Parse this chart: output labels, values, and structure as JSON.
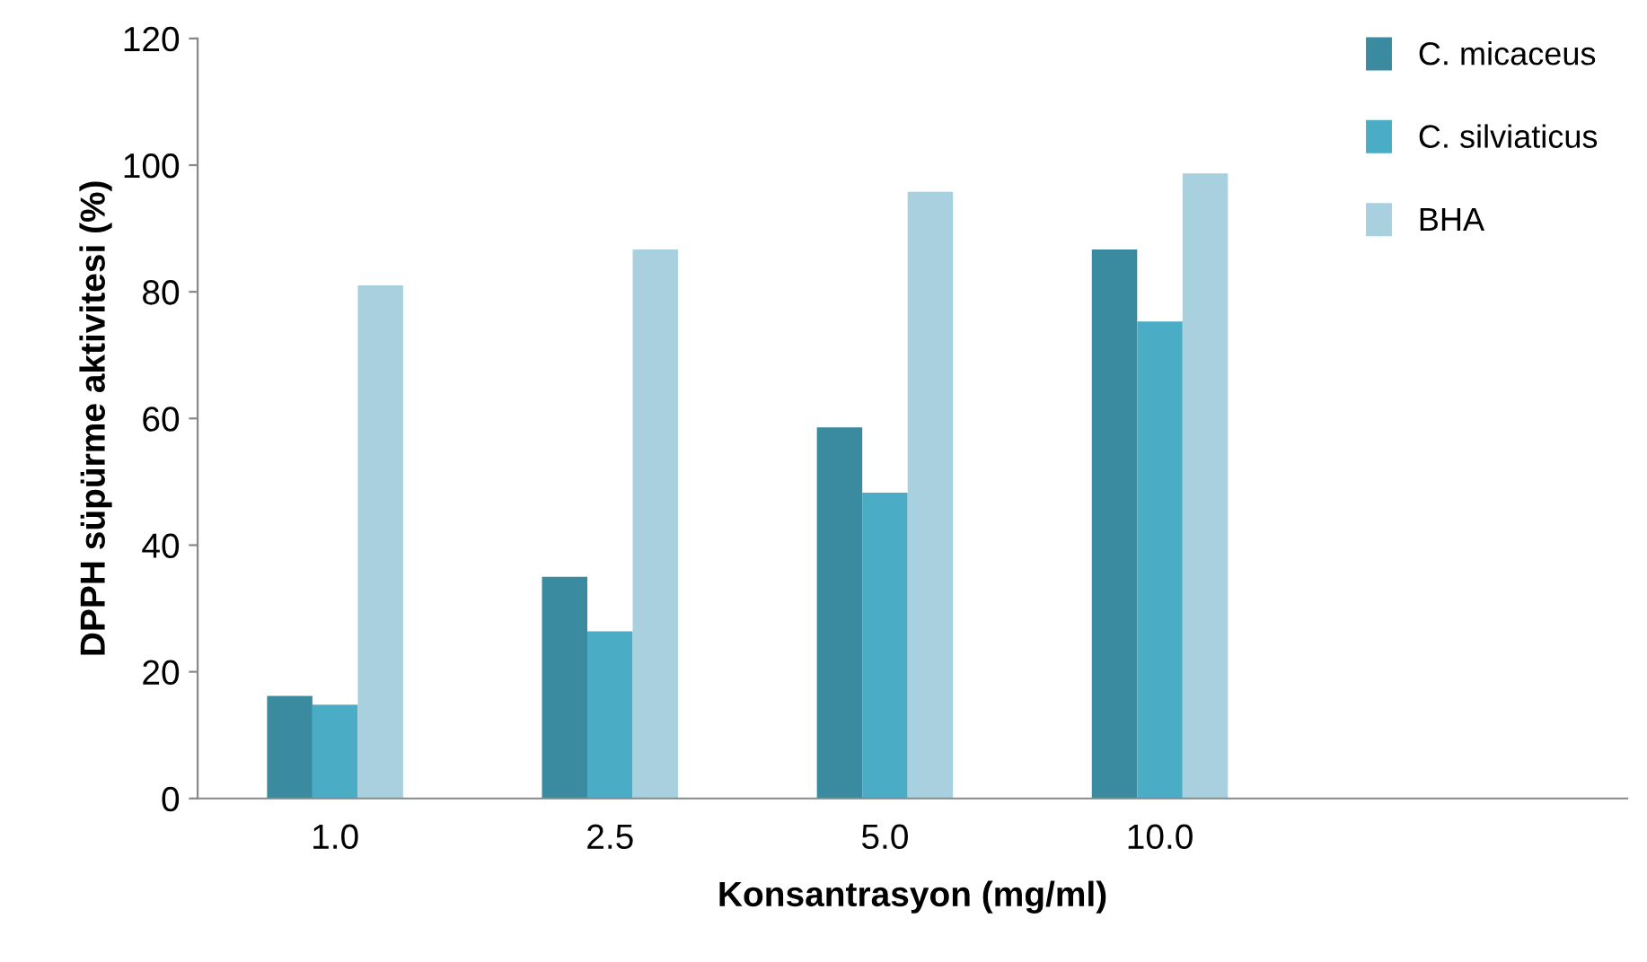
{
  "chart_data": {
    "type": "bar",
    "xlabel": "Konsantrasyon (mg/ml)",
    "ylabel": "DPPH süpürme aktivitesi (%)",
    "categories": [
      "1.0",
      "2.5",
      "5.0",
      "10.0",
      null
    ],
    "series": [
      {
        "name": "C. micaceus",
        "color": "#3a8ba0",
        "values": [
          16.2,
          35.0,
          58.6,
          86.7,
          null
        ]
      },
      {
        "name": "C. silviaticus",
        "color": "#4bacc6",
        "values": [
          14.8,
          26.4,
          48.3,
          75.3,
          null
        ]
      },
      {
        "name": "BHA",
        "color": "#a9d0de",
        "values": [
          81.0,
          86.7,
          95.8,
          98.7,
          null
        ]
      }
    ],
    "ylim": [
      0,
      120
    ],
    "yticks": [
      0,
      20,
      40,
      60,
      80,
      100,
      120
    ],
    "grid": false,
    "legend": "top right"
  }
}
